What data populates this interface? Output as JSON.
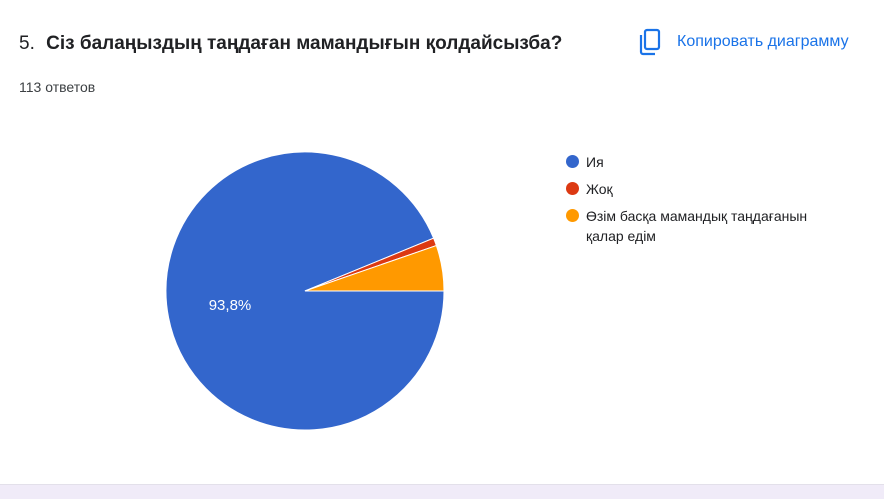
{
  "question": {
    "number": "5.",
    "title": "Сіз балаңыздың таңдаған мамандығын қолдайсызба?"
  },
  "responses_text": "113 ответов",
  "copy_button": {
    "label": "Копировать диаграмму",
    "icon": "copy-icon",
    "color": "#1a73e8"
  },
  "chart_data": {
    "type": "pie",
    "categories": [
      "Ия",
      "Жоқ",
      "Өзім басқа мамандық таңдағанын қалар едім"
    ],
    "values": [
      93.8,
      0.9,
      5.3
    ],
    "colors": [
      "#3366cc",
      "#dc3912",
      "#ff9900"
    ],
    "slice_labels": [
      "93,8%",
      "",
      ""
    ],
    "legend_position": "right"
  }
}
